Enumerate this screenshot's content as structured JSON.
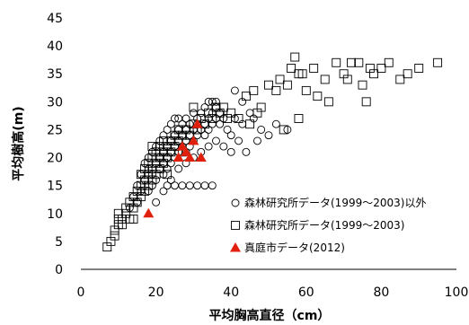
{
  "chart_data": {
    "type": "scatter",
    "xlabel": "平均胸高直径（cm）",
    "ylabel": "平均樹高(m)",
    "xlim": [
      0,
      100
    ],
    "ylim": [
      0,
      45
    ],
    "xticks": [
      "0",
      "20",
      "40",
      "60",
      "80",
      "100"
    ],
    "yticks": [
      "0",
      "5",
      "10",
      "15",
      "20",
      "25",
      "30",
      "35",
      "40",
      "45"
    ],
    "grid": false,
    "legend_position": "bottom-right",
    "series": [
      {
        "name": "森林研究所データ(1999～2003)以外",
        "marker": "circle",
        "color": "#000000",
        "points": [
          [
            14,
            13
          ],
          [
            15,
            15
          ],
          [
            16,
            14
          ],
          [
            16,
            17
          ],
          [
            17,
            16
          ],
          [
            17,
            19
          ],
          [
            18,
            18
          ],
          [
            18,
            20
          ],
          [
            19,
            17
          ],
          [
            19,
            21
          ],
          [
            19,
            15
          ],
          [
            20,
            19
          ],
          [
            20,
            22
          ],
          [
            20,
            16
          ],
          [
            21,
            20
          ],
          [
            21,
            23
          ],
          [
            21,
            18
          ],
          [
            22,
            21
          ],
          [
            22,
            24
          ],
          [
            22,
            19
          ],
          [
            22,
            17
          ],
          [
            23,
            22
          ],
          [
            23,
            25
          ],
          [
            23,
            20
          ],
          [
            23,
            18
          ],
          [
            24,
            23
          ],
          [
            24,
            26
          ],
          [
            24,
            21
          ],
          [
            24,
            19
          ],
          [
            25,
            24
          ],
          [
            25,
            22
          ],
          [
            25,
            27
          ],
          [
            25,
            20
          ],
          [
            26,
            25
          ],
          [
            26,
            23
          ],
          [
            26,
            21
          ],
          [
            26,
            27
          ],
          [
            27,
            24
          ],
          [
            27,
            22
          ],
          [
            27,
            26
          ],
          [
            28,
            25
          ],
          [
            28,
            23
          ],
          [
            28,
            27
          ],
          [
            28,
            21
          ],
          [
            29,
            24
          ],
          [
            29,
            26
          ],
          [
            29,
            22
          ],
          [
            30,
            25
          ],
          [
            30,
            28
          ],
          [
            30,
            23
          ],
          [
            31,
            24
          ],
          [
            31,
            27
          ],
          [
            31,
            26
          ],
          [
            32,
            25
          ],
          [
            32,
            28
          ],
          [
            33,
            26
          ],
          [
            33,
            24
          ],
          [
            33,
            29
          ],
          [
            34,
            27
          ],
          [
            34,
            25
          ],
          [
            35,
            28
          ],
          [
            35,
            30
          ],
          [
            35,
            26
          ],
          [
            36,
            27
          ],
          [
            36,
            29
          ],
          [
            37,
            28
          ],
          [
            37,
            26
          ],
          [
            38,
            27
          ],
          [
            39,
            25
          ],
          [
            40,
            24
          ],
          [
            41,
            27
          ],
          [
            42,
            23
          ],
          [
            43,
            26
          ],
          [
            45,
            28
          ],
          [
            46,
            27
          ],
          [
            48,
            25
          ],
          [
            50,
            24
          ],
          [
            52,
            26
          ],
          [
            55,
            25
          ],
          [
            23,
            15
          ],
          [
            25,
            15
          ],
          [
            27,
            15
          ],
          [
            29,
            15
          ],
          [
            31,
            15
          ],
          [
            33,
            15
          ],
          [
            35,
            15
          ],
          [
            20,
            12
          ],
          [
            18,
            14
          ],
          [
            15,
            12
          ],
          [
            13,
            11
          ],
          [
            22,
            14
          ],
          [
            24,
            16
          ],
          [
            26,
            18
          ],
          [
            28,
            19
          ],
          [
            30,
            20
          ],
          [
            32,
            21
          ],
          [
            34,
            22
          ],
          [
            36,
            23
          ],
          [
            38,
            22
          ],
          [
            40,
            21
          ],
          [
            44,
            21
          ],
          [
            47,
            23
          ],
          [
            43,
            30
          ],
          [
            41,
            32
          ],
          [
            36,
            30
          ],
          [
            34,
            30
          ]
        ]
      },
      {
        "name": "森林研究所データ(1999～2003)",
        "marker": "square",
        "color": "#000000",
        "points": [
          [
            7,
            4
          ],
          [
            8,
            5
          ],
          [
            9,
            6
          ],
          [
            9,
            7
          ],
          [
            10,
            8
          ],
          [
            10,
            9
          ],
          [
            11,
            8
          ],
          [
            11,
            9
          ],
          [
            12,
            10
          ],
          [
            12,
            11
          ],
          [
            13,
            9
          ],
          [
            13,
            12
          ],
          [
            14,
            11
          ],
          [
            14,
            13
          ],
          [
            15,
            12
          ],
          [
            15,
            14
          ],
          [
            16,
            13
          ],
          [
            16,
            15
          ],
          [
            16,
            17
          ],
          [
            17,
            14
          ],
          [
            17,
            16
          ],
          [
            17,
            18
          ],
          [
            18,
            15
          ],
          [
            18,
            17
          ],
          [
            18,
            19
          ],
          [
            19,
            16
          ],
          [
            19,
            18
          ],
          [
            19,
            20
          ],
          [
            20,
            17
          ],
          [
            20,
            19
          ],
          [
            20,
            21
          ],
          [
            21,
            18
          ],
          [
            21,
            20
          ],
          [
            21,
            22
          ],
          [
            22,
            19
          ],
          [
            22,
            21
          ],
          [
            22,
            23
          ],
          [
            23,
            20
          ],
          [
            23,
            22
          ],
          [
            24,
            21
          ],
          [
            24,
            23
          ],
          [
            25,
            22
          ],
          [
            25,
            24
          ],
          [
            26,
            23
          ],
          [
            26,
            25
          ],
          [
            27,
            24
          ],
          [
            28,
            25
          ],
          [
            29,
            24
          ],
          [
            30,
            26
          ],
          [
            31,
            25
          ],
          [
            32,
            27
          ],
          [
            33,
            26
          ],
          [
            34,
            28
          ],
          [
            35,
            27
          ],
          [
            36,
            29
          ],
          [
            37,
            28
          ],
          [
            38,
            29
          ],
          [
            39,
            27
          ],
          [
            40,
            28
          ],
          [
            42,
            27
          ],
          [
            44,
            31
          ],
          [
            46,
            32
          ],
          [
            47,
            28
          ],
          [
            48,
            29
          ],
          [
            50,
            33
          ],
          [
            52,
            32
          ],
          [
            53,
            34
          ],
          [
            55,
            33
          ],
          [
            56,
            36
          ],
          [
            57,
            38
          ],
          [
            58,
            35
          ],
          [
            59,
            35
          ],
          [
            60,
            32
          ],
          [
            62,
            36
          ],
          [
            63,
            31
          ],
          [
            65,
            34
          ],
          [
            66,
            30
          ],
          [
            68,
            37
          ],
          [
            70,
            35
          ],
          [
            71,
            34
          ],
          [
            72,
            37
          ],
          [
            74,
            37
          ],
          [
            75,
            33
          ],
          [
            76,
            30
          ],
          [
            77,
            36
          ],
          [
            78,
            35
          ],
          [
            80,
            36
          ],
          [
            82,
            37
          ],
          [
            85,
            34
          ],
          [
            87,
            35
          ],
          [
            90,
            36
          ],
          [
            95,
            37
          ],
          [
            58,
            27
          ],
          [
            54,
            25
          ],
          [
            45,
            26
          ],
          [
            10,
            10
          ],
          [
            14,
            9
          ],
          [
            19,
            22
          ],
          [
            23,
            17
          ],
          [
            27,
            21
          ],
          [
            30,
            29
          ]
        ]
      },
      {
        "name": "真庭市データ(2012)",
        "marker": "triangle",
        "color": "#e0200c",
        "points": [
          [
            18,
            10
          ],
          [
            26,
            20
          ],
          [
            27,
            22
          ],
          [
            28,
            21
          ],
          [
            29,
            20
          ],
          [
            30,
            23
          ],
          [
            31,
            26
          ],
          [
            32,
            20
          ]
        ]
      }
    ]
  }
}
